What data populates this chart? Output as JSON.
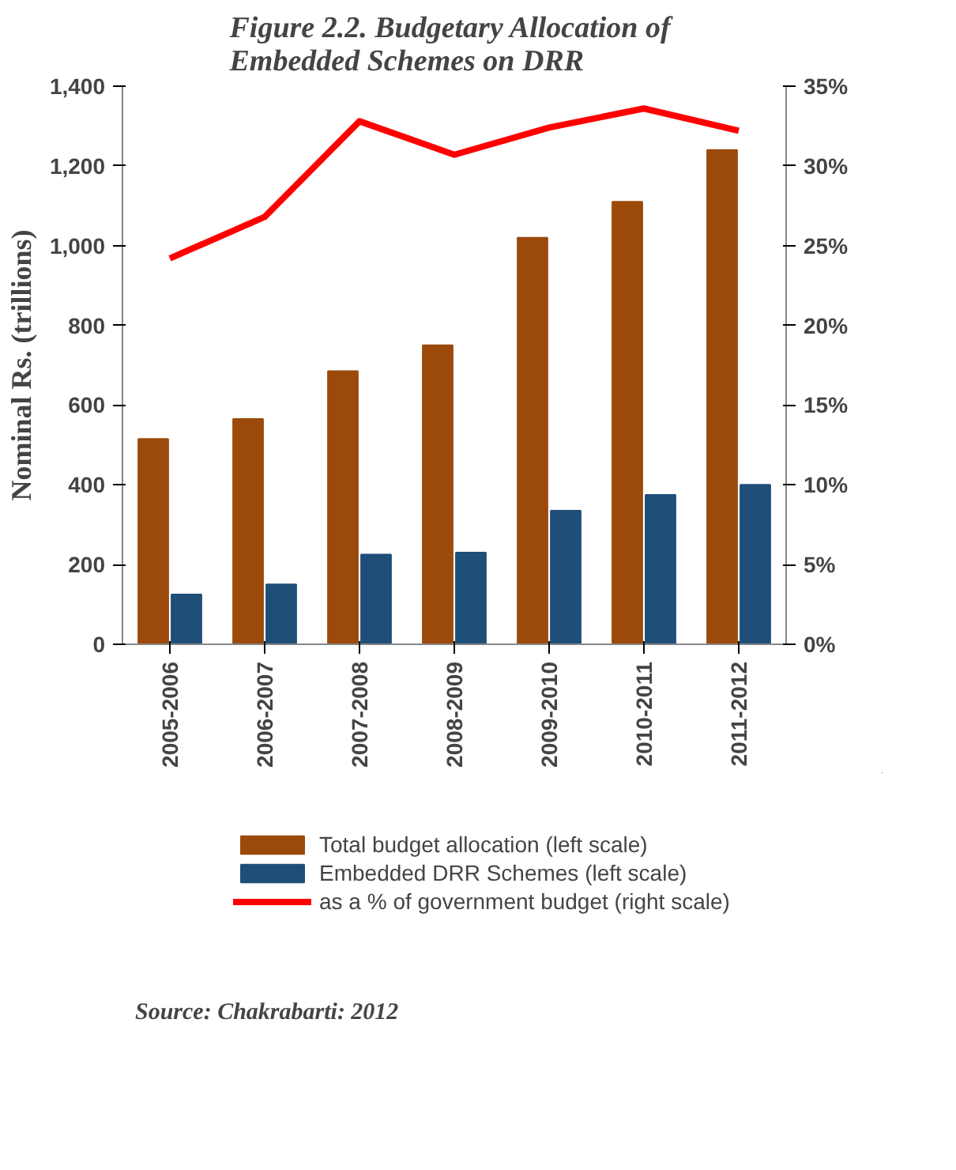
{
  "chart_data": {
    "type": "bar",
    "title": "Figure 2.2.  Budgetary Allocation of Embedded Schemes on DRR",
    "categories": [
      "2005-2006",
      "2006-2007",
      "2007-2008",
      "2008-2009",
      "2009-2010",
      "2010-2011",
      "2011-2012"
    ],
    "series": [
      {
        "name": "Total budget allocation (left scale)",
        "color": "#9c4a0c",
        "values": [
          515,
          565,
          685,
          750,
          1020,
          1110,
          1240
        ]
      },
      {
        "name": "Embedded DRR Schemes (left scale)",
        "color": "#1f4e79",
        "values": [
          125,
          150,
          225,
          230,
          335,
          375,
          400
        ]
      },
      {
        "name": "as a % of government budget (right scale)",
        "color": "#ff0000",
        "type": "line",
        "axis": "y2",
        "values": [
          24.2,
          26.8,
          32.8,
          30.7,
          32.4,
          33.6,
          32.2
        ]
      }
    ],
    "ylabel": "Nominal Rs. (trillions)",
    "ylim": [
      0,
      1400
    ],
    "yticks": [
      {
        "value": 0,
        "label": "0"
      },
      {
        "value": 200,
        "label": "200"
      },
      {
        "value": 400,
        "label": "400"
      },
      {
        "value": 600,
        "label": "600"
      },
      {
        "value": 800,
        "label": "800"
      },
      {
        "value": 1000,
        "label": "1,000"
      },
      {
        "value": 1200,
        "label": "1,200"
      },
      {
        "value": 1400,
        "label": "1,400"
      }
    ],
    "y2lim": [
      0,
      35
    ],
    "y2ticks": [
      {
        "value": 0,
        "label": "0%"
      },
      {
        "value": 5,
        "label": "5%"
      },
      {
        "value": 10,
        "label": "10%"
      },
      {
        "value": 15,
        "label": "15%"
      },
      {
        "value": 20,
        "label": "20%"
      },
      {
        "value": 25,
        "label": "25%"
      },
      {
        "value": 30,
        "label": "30%"
      },
      {
        "value": 35,
        "label": "35%"
      }
    ],
    "grid": false,
    "legend": "bottom",
    "marker": "none",
    "line_style": "solid",
    "annotations": [
      "Source: Chakrabarti: 2012"
    ]
  }
}
